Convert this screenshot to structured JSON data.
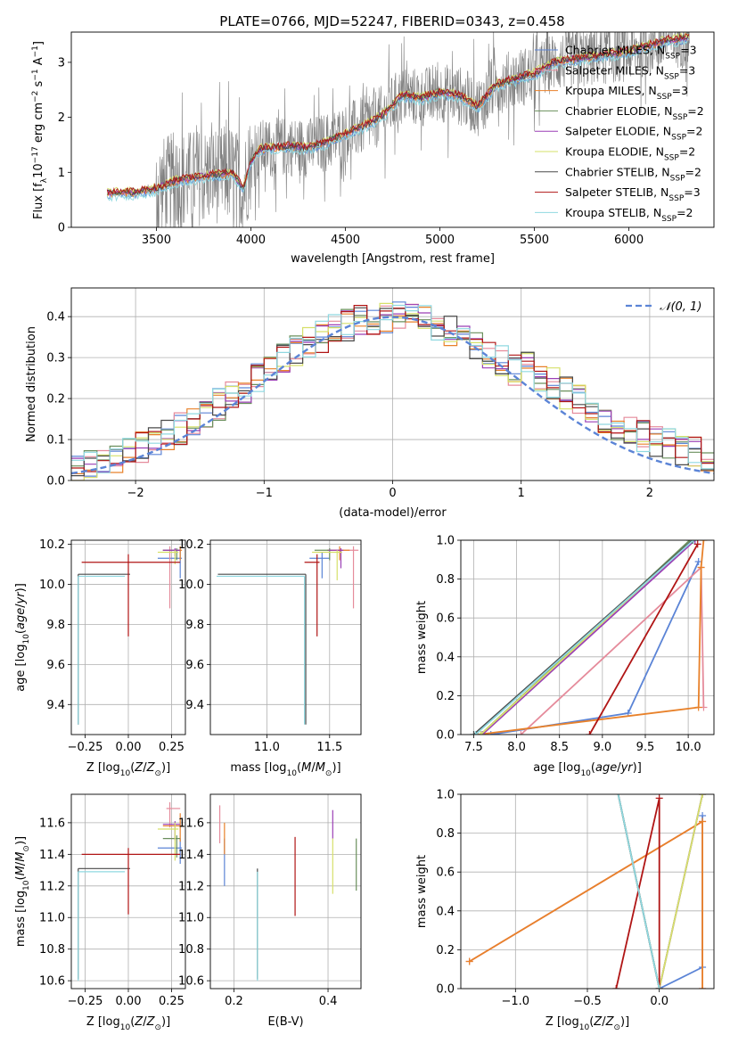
{
  "title": "PLATE=0766, MJD=52247, FIBERID=0343, z=0.458",
  "colors": {
    "chabrier_miles": "#5b84d6",
    "salpeter_miles": "#e58b9b",
    "kroupa_miles": "#e8812a",
    "chabrier_elodie": "#6a8f5c",
    "salpeter_elodie": "#9b3fb5",
    "kroupa_elodie": "#d6e06a",
    "chabrier_stelib": "#4a4a4a",
    "salpeter_stelib": "#b01515",
    "kroupa_stelib": "#8fd8e0",
    "data": "#808080",
    "normal": "#5b84d6"
  },
  "chart_data": [
    {
      "id": "spectrum",
      "type": "line",
      "xlabel": "wavelength [Angstrom, rest frame]",
      "ylabel": "Flux [f_λ 10^-17 erg cm^-2 s^-1 A^-1]",
      "xlim": [
        3050,
        6450
      ],
      "ylim": [
        0,
        3.55
      ],
      "xticks": [
        3500,
        4000,
        4500,
        5000,
        5500,
        6000
      ],
      "yticks": [
        0,
        1,
        2,
        3
      ],
      "legend_position": "top-right",
      "data_series": "observed spectrum",
      "legend": [
        {
          "label": "Chabrier MILES, N_SSP=3",
          "key": "chabrier_miles"
        },
        {
          "label": "Salpeter MILES, N_SSP=3",
          "key": "salpeter_miles"
        },
        {
          "label": "Kroupa MILES, N_SSP=3",
          "key": "kroupa_miles"
        },
        {
          "label": "Chabrier ELODIE, N_SSP=2",
          "key": "chabrier_elodie"
        },
        {
          "label": "Salpeter ELODIE, N_SSP=2",
          "key": "salpeter_elodie"
        },
        {
          "label": "Kroupa ELODIE, N_SSP=2",
          "key": "kroupa_elodie"
        },
        {
          "label": "Chabrier STELIB, N_SSP=2",
          "key": "chabrier_stelib"
        },
        {
          "label": "Salpeter STELIB, N_SSP=3",
          "key": "salpeter_stelib"
        },
        {
          "label": "Kroupa STELIB, N_SSP=2",
          "key": "kroupa_stelib"
        }
      ],
      "model_curve": [
        [
          3240,
          0.62
        ],
        [
          3400,
          0.64
        ],
        [
          3500,
          0.7
        ],
        [
          3600,
          0.85
        ],
        [
          3700,
          0.9
        ],
        [
          3800,
          0.95
        ],
        [
          3900,
          0.98
        ],
        [
          3960,
          0.72
        ],
        [
          4000,
          1.2
        ],
        [
          4050,
          1.42
        ],
        [
          4100,
          1.44
        ],
        [
          4200,
          1.47
        ],
        [
          4300,
          1.45
        ],
        [
          4400,
          1.55
        ],
        [
          4500,
          1.7
        ],
        [
          4600,
          1.85
        ],
        [
          4700,
          2.05
        ],
        [
          4800,
          2.4
        ],
        [
          4900,
          2.35
        ],
        [
          5000,
          2.45
        ],
        [
          5100,
          2.4
        ],
        [
          5200,
          2.2
        ],
        [
          5300,
          2.6
        ],
        [
          5400,
          2.7
        ],
        [
          5500,
          2.8
        ],
        [
          5600,
          3.0
        ],
        [
          5700,
          3.05
        ],
        [
          5800,
          3.1
        ],
        [
          5900,
          3.15
        ],
        [
          6000,
          3.2
        ],
        [
          6100,
          3.3
        ],
        [
          6200,
          3.4
        ],
        [
          6320,
          3.45
        ]
      ]
    },
    {
      "id": "residuals",
      "type": "histogram",
      "xlabel": "(data-model)/error",
      "ylabel": "Normed distribution",
      "xlim": [
        -2.5,
        2.5
      ],
      "ylim": [
        0,
        0.47
      ],
      "xticks": [
        -2,
        -1,
        0,
        1,
        2
      ],
      "yticks": [
        0.0,
        0.1,
        0.2,
        0.3,
        0.4
      ],
      "legend": [
        {
          "label": "𝒩(0, 1)",
          "key": "normal"
        }
      ],
      "bin_width": 0.1
    },
    {
      "id": "age_vs_Z",
      "type": "errorbar",
      "xlabel": "Z [log10(Z/Z☉)]",
      "ylabel": "age  [log10(age/yr)]",
      "xlim": [
        -0.33,
        0.33
      ],
      "ylim": [
        9.25,
        10.22
      ],
      "xticks": [
        -0.25,
        0.0,
        0.25
      ],
      "yticks": [
        9.4,
        9.6,
        9.8,
        10.0,
        10.2
      ],
      "points": [
        {
          "key": "chabrier_miles",
          "x": 0.3,
          "y": 10.13,
          "xerr": [
            0.13,
            0.01
          ],
          "yerr": [
            0.1,
            0.04
          ]
        },
        {
          "key": "salpeter_miles",
          "x": 0.24,
          "y": 10.17,
          "xerr": [
            0.02,
            0.06
          ],
          "yerr": [
            0.29,
            0.02
          ]
        },
        {
          "key": "kroupa_miles",
          "x": 0.3,
          "y": 10.17,
          "xerr": [
            0.1,
            0.01
          ],
          "yerr": [
            0.05,
            0.02
          ]
        },
        {
          "key": "chabrier_elodie",
          "x": 0.28,
          "y": 10.17,
          "xerr": [
            0.08,
            0.02
          ],
          "yerr": [
            0.05,
            0.01
          ]
        },
        {
          "key": "salpeter_elodie",
          "x": 0.27,
          "y": 10.17,
          "xerr": [
            0.07,
            0.03
          ],
          "yerr": [
            0.03,
            0.01
          ]
        },
        {
          "key": "kroupa_elodie",
          "x": 0.27,
          "y": 10.16,
          "xerr": [
            0.1,
            0.02
          ],
          "yerr": [
            0.06,
            0.01
          ]
        },
        {
          "key": "chabrier_stelib",
          "x": -0.29,
          "y": 10.05,
          "xerr": [
            0.0,
            0.3
          ],
          "yerr": [
            0.75,
            0.0
          ]
        },
        {
          "key": "salpeter_stelib",
          "x": 0.0,
          "y": 10.11,
          "xerr": [
            0.27,
            0.3
          ],
          "yerr": [
            0.37,
            0.04
          ]
        },
        {
          "key": "kroupa_stelib",
          "x": -0.29,
          "y": 10.04,
          "xerr": [
            0.0,
            0.27
          ],
          "yerr": [
            0.74,
            0.0
          ]
        }
      ]
    },
    {
      "id": "age_vs_mass",
      "type": "errorbar",
      "xlabel": "mass [log10(M/M☉)]",
      "ylabel": "",
      "xlim": [
        10.55,
        11.75
      ],
      "ylim": [
        9.25,
        10.22
      ],
      "xticks": [
        11.0,
        11.5
      ],
      "yticks": [
        9.4,
        9.6,
        9.8,
        10.0,
        10.2
      ],
      "points": [
        {
          "key": "chabrier_miles",
          "x": 11.44,
          "y": 10.13,
          "xerr": [
            0.1,
            0.06
          ],
          "yerr": [
            0.1,
            0.03
          ]
        },
        {
          "key": "salpeter_miles",
          "x": 11.69,
          "y": 10.17,
          "xerr": [
            0.12,
            0.04
          ],
          "yerr": [
            0.29,
            0.02
          ]
        },
        {
          "key": "kroupa_miles",
          "x": 11.58,
          "y": 10.17,
          "xerr": [
            0.1,
            0.08
          ],
          "yerr": [
            0.05,
            0.02
          ]
        },
        {
          "key": "chabrier_elodie",
          "x": 11.5,
          "y": 10.17,
          "xerr": [
            0.12,
            0.02
          ],
          "yerr": [
            0.05,
            0.01
          ]
        },
        {
          "key": "salpeter_elodie",
          "x": 11.59,
          "y": 10.17,
          "xerr": [
            0.1,
            0.02
          ],
          "yerr": [
            0.09,
            0.01
          ]
        },
        {
          "key": "kroupa_elodie",
          "x": 11.56,
          "y": 10.16,
          "xerr": [
            0.2,
            0.04
          ],
          "yerr": [
            0.14,
            0.01
          ]
        },
        {
          "key": "chabrier_stelib",
          "x": 11.31,
          "y": 10.05,
          "xerr": [
            0.7,
            0.0
          ],
          "yerr": [
            0.75,
            0.0
          ]
        },
        {
          "key": "salpeter_stelib",
          "x": 11.4,
          "y": 10.11,
          "xerr": [
            0.1,
            0.02
          ],
          "yerr": [
            0.37,
            0.04
          ]
        },
        {
          "key": "kroupa_stelib",
          "x": 11.3,
          "y": 10.04,
          "xerr": [
            0.7,
            0.0
          ],
          "yerr": [
            0.74,
            0.0
          ]
        }
      ]
    },
    {
      "id": "cumweight_vs_age",
      "type": "line",
      "xlabel": "age  [log10(age/yr)]",
      "ylabel": "mass weight",
      "xlim": [
        7.35,
        10.3
      ],
      "ylim": [
        0,
        1
      ],
      "xticks": [
        7.5,
        8.0,
        8.5,
        9.0,
        9.5,
        10.0
      ],
      "yticks": [
        0.0,
        0.2,
        0.4,
        0.6,
        0.8,
        1.0
      ],
      "series": [
        {
          "key": "chabrier_miles",
          "points": [
            [
              7.7,
              0
            ],
            [
              9.3,
              0.11
            ],
            [
              10.12,
              0.89
            ]
          ]
        },
        {
          "key": "salpeter_miles",
          "points": [
            [
              8.05,
              0
            ],
            [
              10.15,
              0.86
            ],
            [
              10.18,
              0.14
            ]
          ]
        },
        {
          "key": "kroupa_miles",
          "points": [
            [
              7.55,
              0
            ],
            [
              10.12,
              0.14
            ],
            [
              10.15,
              0.86
            ],
            [
              10.18,
              1.0
            ]
          ]
        },
        {
          "key": "chabrier_elodie",
          "points": [
            [
              7.58,
              0
            ],
            [
              10.02,
              1.0
            ]
          ]
        },
        {
          "key": "salpeter_elodie",
          "points": [
            [
              7.6,
              0
            ],
            [
              10.08,
              1.0
            ]
          ]
        },
        {
          "key": "kroupa_elodie",
          "points": [
            [
              7.58,
              0
            ],
            [
              10.05,
              1.0
            ]
          ]
        },
        {
          "key": "chabrier_stelib",
          "points": [
            [
              7.5,
              0
            ],
            [
              10.05,
              1.0
            ]
          ]
        },
        {
          "key": "salpeter_stelib",
          "points": [
            [
              8.85,
              0
            ],
            [
              10.11,
              0.98
            ]
          ]
        },
        {
          "key": "kroupa_stelib",
          "points": [
            [
              7.52,
              0
            ],
            [
              10.06,
              1.0
            ]
          ]
        }
      ]
    },
    {
      "id": "mass_vs_Z",
      "type": "errorbar",
      "xlabel": "Z [log10(Z/Z☉)]",
      "ylabel": "mass [log10(M/M☉)]",
      "xlim": [
        -0.33,
        0.33
      ],
      "ylim": [
        10.55,
        11.78
      ],
      "xticks": [
        -0.25,
        0.0,
        0.25
      ],
      "yticks": [
        10.6,
        10.8,
        11.0,
        11.2,
        11.4,
        11.6
      ],
      "points": [
        {
          "key": "chabrier_miles",
          "x": 0.3,
          "y": 11.44,
          "xerr": [
            0.13,
            0.01
          ],
          "yerr": [
            0.1,
            0.06
          ]
        },
        {
          "key": "salpeter_miles",
          "x": 0.24,
          "y": 11.69,
          "xerr": [
            0.02,
            0.06
          ],
          "yerr": [
            0.12,
            0.04
          ]
        },
        {
          "key": "kroupa_miles",
          "x": 0.3,
          "y": 11.58,
          "xerr": [
            0.1,
            0.01
          ],
          "yerr": [
            0.1,
            0.08
          ]
        },
        {
          "key": "chabrier_elodie",
          "x": 0.28,
          "y": 11.5,
          "xerr": [
            0.08,
            0.02
          ],
          "yerr": [
            0.12,
            0.02
          ]
        },
        {
          "key": "salpeter_elodie",
          "x": 0.27,
          "y": 11.59,
          "xerr": [
            0.07,
            0.03
          ],
          "yerr": [
            0.1,
            0.02
          ]
        },
        {
          "key": "kroupa_elodie",
          "x": 0.27,
          "y": 11.56,
          "xerr": [
            0.1,
            0.02
          ],
          "yerr": [
            0.2,
            0.04
          ]
        },
        {
          "key": "chabrier_stelib",
          "x": -0.29,
          "y": 11.31,
          "xerr": [
            0.0,
            0.3
          ],
          "yerr": [
            0.7,
            0.0
          ]
        },
        {
          "key": "salpeter_stelib",
          "x": 0.0,
          "y": 11.4,
          "xerr": [
            0.27,
            0.3
          ],
          "yerr": [
            0.38,
            0.04
          ]
        },
        {
          "key": "kroupa_stelib",
          "x": -0.29,
          "y": 11.29,
          "xerr": [
            0.0,
            0.27
          ],
          "yerr": [
            0.69,
            0.0
          ]
        }
      ]
    },
    {
      "id": "mass_vs_ebv",
      "type": "errorbar",
      "xlabel": "E(B-V)",
      "ylabel": "",
      "xlim": [
        0.15,
        0.47
      ],
      "ylim": [
        10.55,
        11.78
      ],
      "xticks": [
        0.2,
        0.4
      ],
      "yticks": [
        10.6,
        10.8,
        11.0,
        11.2,
        11.4,
        11.6
      ],
      "points": [
        {
          "key": "chabrier_miles",
          "x": 0.18,
          "y": 11.44,
          "xerr": [
            0,
            0
          ],
          "yerr": [
            0.24,
            0.06
          ]
        },
        {
          "key": "salpeter_miles",
          "x": 0.17,
          "y": 11.6,
          "xerr": [
            0,
            0
          ],
          "yerr": [
            0.13,
            0.11
          ]
        },
        {
          "key": "kroupa_miles",
          "x": 0.18,
          "y": 11.5,
          "xerr": [
            0,
            0
          ],
          "yerr": [
            0.1,
            0.1
          ]
        },
        {
          "key": "chabrier_elodie",
          "x": 0.46,
          "y": 11.45,
          "xerr": [
            0,
            0
          ],
          "yerr": [
            0.28,
            0.05
          ]
        },
        {
          "key": "salpeter_elodie",
          "x": 0.41,
          "y": 11.6,
          "xerr": [
            0,
            0
          ],
          "yerr": [
            0.1,
            0.08
          ]
        },
        {
          "key": "kroupa_elodie",
          "x": 0.41,
          "y": 11.4,
          "xerr": [
            0,
            0
          ],
          "yerr": [
            0.25,
            0.1
          ]
        },
        {
          "key": "chabrier_stelib",
          "x": 0.25,
          "y": 11.31,
          "xerr": [
            0,
            0
          ],
          "yerr": [
            0.7,
            0.0
          ]
        },
        {
          "key": "salpeter_stelib",
          "x": 0.33,
          "y": 11.25,
          "xerr": [
            0,
            0
          ],
          "yerr": [
            0.24,
            0.26
          ]
        },
        {
          "key": "kroupa_stelib",
          "x": 0.25,
          "y": 11.29,
          "xerr": [
            0,
            0
          ],
          "yerr": [
            0.69,
            0.0
          ]
        }
      ]
    },
    {
      "id": "cumweight_vs_Z",
      "type": "line",
      "xlabel": "Z [log10(Z/Z☉)]",
      "ylabel": "mass weight",
      "xlim": [
        -1.38,
        0.38
      ],
      "ylim": [
        0,
        1
      ],
      "xticks": [
        -1.0,
        -0.5,
        0.0
      ],
      "yticks": [
        0.0,
        0.2,
        0.4,
        0.6,
        0.8,
        1.0
      ],
      "series": [
        {
          "key": "chabrier_miles",
          "points": [
            [
              0.0,
              0
            ],
            [
              0.3,
              0.11
            ],
            [
              0.3,
              0.89
            ]
          ]
        },
        {
          "key": "salpeter_miles",
          "points": [
            [
              -1.32,
              0.14
            ],
            [
              0.3,
              0.86
            ],
            [
              0.3,
              0
            ]
          ]
        },
        {
          "key": "kroupa_miles",
          "points": [
            [
              -1.32,
              0.14
            ],
            [
              0.3,
              0.86
            ],
            [
              0.3,
              0
            ]
          ]
        },
        {
          "key": "chabrier_elodie",
          "points": [
            [
              -0.3,
              1.05
            ],
            [
              0.0,
              0
            ],
            [
              0.3,
              1.0
            ]
          ]
        },
        {
          "key": "salpeter_elodie",
          "points": [
            [
              -0.3,
              1.05
            ],
            [
              0.0,
              0
            ],
            [
              0.3,
              1.0
            ]
          ]
        },
        {
          "key": "kroupa_elodie",
          "points": [
            [
              -0.3,
              1.05
            ],
            [
              0.0,
              0
            ],
            [
              0.3,
              1.0
            ]
          ]
        },
        {
          "key": "chabrier_stelib",
          "points": [
            [
              -0.3,
              1.05
            ],
            [
              0.0,
              0
            ]
          ]
        },
        {
          "key": "salpeter_stelib",
          "points": [
            [
              -0.3,
              0
            ],
            [
              0.0,
              0.98
            ],
            [
              0.0,
              0
            ]
          ]
        },
        {
          "key": "kroupa_stelib",
          "points": [
            [
              -0.3,
              1.05
            ],
            [
              0.0,
              0
            ]
          ]
        }
      ]
    }
  ]
}
